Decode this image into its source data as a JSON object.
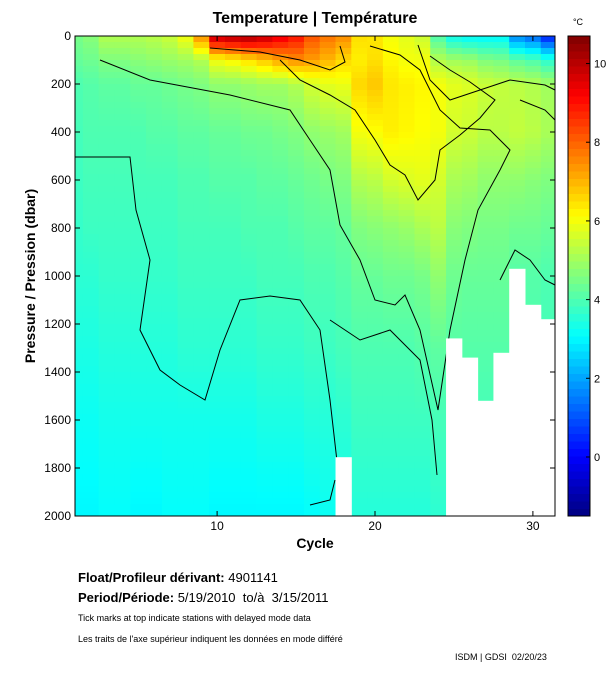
{
  "chart_data": {
    "type": "heatmap",
    "title": "Temperature | Température",
    "xlabel": "Cycle",
    "ylabel": "Pressure / Pression (dbar)",
    "xlim": [
      1,
      31.4
    ],
    "ylim": [
      2000,
      0
    ],
    "x_ticks": [
      "10",
      "20",
      "30"
    ],
    "x_tick_values": [
      10,
      20,
      30
    ],
    "y_ticks": [
      "0",
      "200",
      "400",
      "600",
      "800",
      "1000",
      "1200",
      "1400",
      "1600",
      "1800",
      "2000"
    ],
    "y_tick_values": [
      0,
      200,
      400,
      600,
      800,
      1000,
      1200,
      1400,
      1600,
      1800,
      2000
    ],
    "colorbar": {
      "unit": "°C",
      "range": [
        -1.5,
        10.7
      ],
      "ticks": [
        "0",
        "2",
        "4",
        "6",
        "8",
        "10"
      ],
      "tick_values": [
        0,
        2,
        4,
        6,
        8,
        10
      ],
      "colormap": "jet"
    },
    "depth_levels": [
      0,
      100,
      200,
      400,
      600,
      800,
      1000,
      1300,
      1600,
      2000
    ],
    "cycles": [
      1,
      2,
      3,
      4,
      5,
      6,
      7,
      8,
      9,
      10,
      11,
      12,
      13,
      14,
      15,
      16,
      17,
      18,
      19,
      20,
      21,
      22,
      23,
      24,
      25,
      26,
      27,
      28,
      29,
      30,
      31
    ],
    "max_depth": [
      2000,
      2000,
      2000,
      2000,
      2000,
      2000,
      2000,
      2000,
      2000,
      2000,
      2000,
      2000,
      2000,
      2000,
      2000,
      2000,
      2000,
      1755,
      2000,
      2000,
      2000,
      2000,
      2000,
      2000,
      1260,
      1340,
      1520,
      1320,
      970,
      1120,
      1180
    ],
    "temperature_profiles": [
      [
        4.5,
        4.3,
        4.0,
        3.9,
        3.8,
        3.7,
        3.6,
        3.4,
        3.2,
        3.0
      ],
      [
        4.7,
        4.4,
        4.1,
        4.0,
        3.9,
        3.8,
        3.6,
        3.4,
        3.2,
        3.0
      ],
      [
        5.2,
        4.6,
        4.2,
        4.0,
        3.9,
        3.8,
        3.7,
        3.5,
        3.3,
        3.1
      ],
      [
        5.2,
        4.6,
        4.2,
        4.0,
        3.9,
        3.8,
        3.7,
        3.5,
        3.3,
        3.1
      ],
      [
        5.2,
        4.7,
        4.3,
        4.0,
        3.9,
        3.8,
        3.7,
        3.5,
        3.3,
        3.0
      ],
      [
        5.3,
        4.8,
        4.3,
        4.1,
        3.9,
        3.8,
        3.7,
        3.5,
        3.3,
        3.0
      ],
      [
        5.5,
        4.9,
        4.4,
        4.1,
        3.9,
        3.8,
        3.7,
        3.5,
        3.3,
        3.1
      ],
      [
        6.0,
        5.0,
        4.5,
        4.2,
        4.0,
        3.9,
        3.8,
        3.6,
        3.3,
        3.1
      ],
      [
        7.5,
        5.2,
        4.6,
        4.2,
        4.0,
        3.9,
        3.8,
        3.6,
        3.3,
        3.1
      ],
      [
        10.0,
        6.0,
        4.8,
        4.3,
        4.1,
        3.9,
        3.8,
        3.6,
        3.3,
        3.0
      ],
      [
        10.2,
        6.2,
        4.8,
        4.3,
        4.1,
        3.9,
        3.8,
        3.6,
        3.3,
        3.0
      ],
      [
        10.3,
        6.5,
        4.9,
        4.4,
        4.1,
        4.0,
        3.8,
        3.6,
        3.3,
        3.0
      ],
      [
        10.0,
        6.8,
        5.0,
        4.4,
        4.2,
        4.0,
        3.9,
        3.7,
        3.4,
        3.0
      ],
      [
        9.5,
        7.2,
        5.0,
        4.5,
        4.2,
        4.0,
        3.9,
        3.7,
        3.4,
        3.0
      ],
      [
        9.0,
        7.5,
        5.2,
        4.6,
        4.3,
        4.1,
        3.9,
        3.7,
        3.4,
        3.0
      ],
      [
        8.2,
        7.3,
        5.6,
        4.8,
        4.4,
        4.2,
        4.0,
        3.8,
        3.5,
        3.1
      ],
      [
        7.8,
        7.0,
        5.8,
        4.9,
        4.5,
        4.2,
        4.0,
        3.8,
        3.5,
        3.2
      ],
      [
        7.5,
        6.6,
        5.9,
        5.0,
        4.6,
        4.3,
        4.1,
        3.9,
        3.6,
        3.3
      ],
      [
        6.5,
        6.3,
        6.6,
        6.0,
        5.2,
        4.6,
        4.3,
        4.0,
        3.8,
        3.5
      ],
      [
        6.4,
        6.5,
        6.8,
        6.1,
        5.3,
        4.7,
        4.3,
        4.0,
        3.8,
        3.5
      ],
      [
        6.0,
        6.2,
        6.4,
        6.3,
        5.6,
        4.8,
        4.4,
        4.0,
        3.8,
        3.5
      ],
      [
        5.8,
        6.0,
        6.3,
        6.2,
        5.7,
        4.9,
        4.4,
        4.0,
        3.8,
        3.5
      ],
      [
        5.5,
        6.0,
        6.2,
        6.1,
        5.8,
        5.1,
        4.5,
        4.1,
        3.8,
        3.5
      ],
      [
        4.0,
        5.2,
        6.0,
        6.0,
        5.6,
        5.3,
        4.8,
        4.2,
        3.9,
        3.6
      ],
      [
        3.2,
        5.0,
        5.8,
        5.6,
        5.1,
        4.7,
        4.4,
        4.1,
        3.9,
        3.6
      ],
      [
        3.0,
        4.9,
        5.7,
        5.5,
        5.0,
        4.6,
        4.3,
        4.1,
        3.9,
        3.6
      ],
      [
        3.0,
        4.6,
        5.5,
        5.3,
        4.8,
        4.5,
        4.3,
        4.1,
        3.9,
        3.6
      ],
      [
        3.0,
        4.5,
        5.4,
        5.3,
        4.8,
        4.5,
        4.3,
        4.1,
        3.9,
        3.6
      ],
      [
        1.6,
        4.2,
        5.3,
        5.4,
        4.8,
        4.4,
        4.1,
        4.0,
        3.8,
        3.6
      ],
      [
        1.2,
        4.0,
        5.2,
        5.3,
        4.7,
        4.4,
        4.1,
        4.0,
        3.8,
        3.6
      ],
      [
        0.3,
        3.6,
        5.0,
        5.1,
        4.6,
        4.3,
        4.0,
        3.9,
        3.8,
        3.6
      ]
    ],
    "contour_labels": [
      "4",
      "5",
      "6",
      "7",
      "8"
    ]
  },
  "info": {
    "float_label": "Float/Profileur dérivant:",
    "float_value": "4901141",
    "period_label": "Period/Période:",
    "period_value": "5/19/2010  to/à  3/15/2011",
    "note_en": "Tick marks at top indicate stations with delayed mode data",
    "note_fr": "Les traits de l'axe supérieur indiquent les données en mode différé",
    "credit": "ISDM | GDSI  02/20/23"
  }
}
